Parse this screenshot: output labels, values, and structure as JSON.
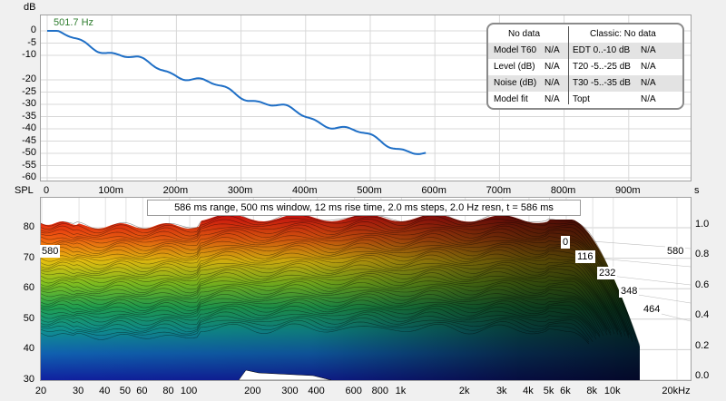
{
  "decay_chart": {
    "y_unit": "dB",
    "x_unit": "s",
    "frequency_label": "501.7 Hz",
    "y_ticks": [
      "0",
      "-5",
      "-10",
      "-20",
      "-25",
      "-30",
      "-35",
      "-40",
      "-45",
      "-50",
      "-55",
      "-60"
    ],
    "x_ticks": [
      "0",
      "100m",
      "200m",
      "300m",
      "400m",
      "500m",
      "600m",
      "700m",
      "800m",
      "900m"
    ],
    "line_color": "#1f6fc6"
  },
  "acoustics_panel": {
    "header_left": "No data",
    "header_right": "Classic: No data",
    "rows": [
      {
        "label": "Model T60",
        "value": "N/A",
        "right_label": "EDT  0..-10 dB",
        "right_value": "N/A"
      },
      {
        "label": "Level (dB)",
        "value": "N/A",
        "right_label": "T20 -5..-25 dB",
        "right_value": "N/A"
      },
      {
        "label": "Noise (dB)",
        "value": "N/A",
        "right_label": "T30 -5..-35 dB",
        "right_value": "N/A"
      },
      {
        "label": "Model fit",
        "value": "N/A",
        "right_label": "Topt",
        "right_value": "N/A"
      }
    ]
  },
  "waterfall": {
    "y_unit": "SPL",
    "info": "586 ms range, 500 ms window, 12 ms rise time, 2.0 ms steps,  2.0 Hz resn, t = 586 ms",
    "y_ticks": [
      "80",
      "70",
      "60",
      "50",
      "40",
      "30"
    ],
    "right_ticks": [
      "1.0",
      "0.8",
      "0.6",
      "0.4",
      "0.2",
      "0.0"
    ],
    "x_ticks": [
      "20",
      "30",
      "40",
      "50",
      "60",
      "80",
      "100",
      "200",
      "300",
      "400",
      "600",
      "800",
      "1k",
      "2k",
      "3k",
      "4k",
      "5k",
      "6k",
      "8k",
      "10k",
      "20kHz"
    ],
    "time_labels": [
      "580",
      "0",
      "116",
      "232",
      "348",
      "464",
      "580"
    ]
  }
}
